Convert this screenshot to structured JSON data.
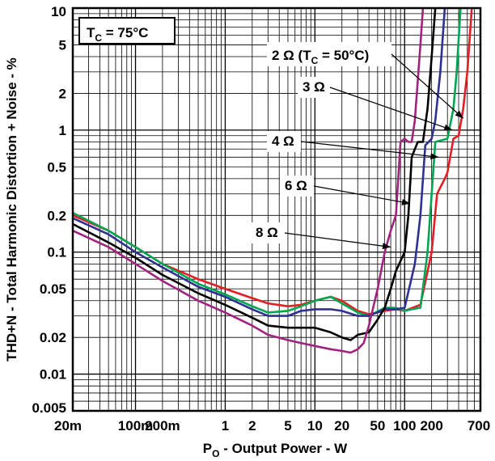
{
  "chart_data": {
    "type": "line",
    "title": "",
    "xlabel_main": "P",
    "xlabel_sub": "O",
    "xlabel_rest": " - Output Power - W",
    "ylabel": "THD+N - Total Harmonic Distortion + Noise - %",
    "xscale": "log",
    "yscale": "log",
    "xlim": [
      0.02,
      700
    ],
    "ylim": [
      0.005,
      10
    ],
    "grid": true,
    "xticks": [
      {
        "v": 0.02,
        "label": "20m"
      },
      {
        "v": 0.1,
        "label": "100m"
      },
      {
        "v": 0.2,
        "label": "200m"
      },
      {
        "v": 1,
        "label": "1"
      },
      {
        "v": 2,
        "label": "2"
      },
      {
        "v": 5,
        "label": "5"
      },
      {
        "v": 10,
        "label": "10"
      },
      {
        "v": 20,
        "label": "20"
      },
      {
        "v": 50,
        "label": "50"
      },
      {
        "v": 100,
        "label": "100"
      },
      {
        "v": 200,
        "label": "200"
      },
      {
        "v": 700,
        "label": "700"
      }
    ],
    "yticks": [
      {
        "v": 10,
        "label": "10"
      },
      {
        "v": 5,
        "label": "5"
      },
      {
        "v": 2,
        "label": "2"
      },
      {
        "v": 1,
        "label": "1"
      },
      {
        "v": 0.5,
        "label": "0.5"
      },
      {
        "v": 0.2,
        "label": "0.2"
      },
      {
        "v": 0.1,
        "label": "0.1"
      },
      {
        "v": 0.05,
        "label": "0.05"
      },
      {
        "v": 0.02,
        "label": "0.02"
      },
      {
        "v": 0.01,
        "label": "0.01"
      },
      {
        "v": 0.005,
        "label": "0.005"
      }
    ],
    "condition_box": {
      "main": "T",
      "sub": "C",
      "rest": " = 75°C"
    },
    "series": [
      {
        "name": "2 Ω (TC = 50°C)",
        "color": "#e31e24",
        "points": [
          [
            0.02,
            0.2
          ],
          [
            0.05,
            0.15
          ],
          [
            0.1,
            0.11
          ],
          [
            0.2,
            0.08
          ],
          [
            0.5,
            0.06
          ],
          [
            1,
            0.05
          ],
          [
            2,
            0.042
          ],
          [
            3,
            0.038
          ],
          [
            5,
            0.036
          ],
          [
            7,
            0.037
          ],
          [
            10,
            0.04
          ],
          [
            15,
            0.043
          ],
          [
            20,
            0.04
          ],
          [
            30,
            0.033
          ],
          [
            40,
            0.031
          ],
          [
            60,
            0.033
          ],
          [
            80,
            0.034
          ],
          [
            100,
            0.033
          ],
          [
            150,
            0.037
          ],
          [
            200,
            0.1
          ],
          [
            230,
            0.3
          ],
          [
            280,
            0.4
          ],
          [
            300,
            0.45
          ],
          [
            350,
            0.85
          ],
          [
            400,
            0.9
          ],
          [
            450,
            1.5
          ],
          [
            500,
            3
          ],
          [
            560,
            10
          ]
        ]
      },
      {
        "name": "3 Ω",
        "color": "#00a651",
        "points": [
          [
            0.02,
            0.21
          ],
          [
            0.05,
            0.15
          ],
          [
            0.1,
            0.11
          ],
          [
            0.2,
            0.08
          ],
          [
            0.5,
            0.055
          ],
          [
            1,
            0.045
          ],
          [
            2,
            0.036
          ],
          [
            3,
            0.032
          ],
          [
            5,
            0.033
          ],
          [
            7,
            0.036
          ],
          [
            10,
            0.04
          ],
          [
            15,
            0.043
          ],
          [
            20,
            0.038
          ],
          [
            30,
            0.032
          ],
          [
            40,
            0.03
          ],
          [
            60,
            0.035
          ],
          [
            80,
            0.035
          ],
          [
            100,
            0.033
          ],
          [
            120,
            0.034
          ],
          [
            150,
            0.035
          ],
          [
            180,
            0.1
          ],
          [
            200,
            0.3
          ],
          [
            220,
            0.8
          ],
          [
            300,
            0.85
          ],
          [
            350,
            1.5
          ],
          [
            380,
            3
          ],
          [
            420,
            10
          ]
        ]
      },
      {
        "name": "4 Ω",
        "color": "#2e3192",
        "points": [
          [
            0.02,
            0.19
          ],
          [
            0.05,
            0.14
          ],
          [
            0.1,
            0.1
          ],
          [
            0.2,
            0.075
          ],
          [
            0.5,
            0.052
          ],
          [
            1,
            0.043
          ],
          [
            2,
            0.034
          ],
          [
            3,
            0.03
          ],
          [
            5,
            0.03
          ],
          [
            7,
            0.033
          ],
          [
            10,
            0.034
          ],
          [
            15,
            0.034
          ],
          [
            20,
            0.033
          ],
          [
            30,
            0.03
          ],
          [
            40,
            0.03
          ],
          [
            60,
            0.034
          ],
          [
            80,
            0.034
          ],
          [
            100,
            0.035
          ],
          [
            130,
            0.08
          ],
          [
            150,
            0.2
          ],
          [
            170,
            0.75
          ],
          [
            200,
            0.85
          ],
          [
            220,
            1.2
          ],
          [
            250,
            3
          ],
          [
            280,
            10
          ]
        ]
      },
      {
        "name": "6 Ω",
        "color": "#000000",
        "points": [
          [
            0.02,
            0.17
          ],
          [
            0.05,
            0.12
          ],
          [
            0.1,
            0.09
          ],
          [
            0.2,
            0.065
          ],
          [
            0.5,
            0.046
          ],
          [
            1,
            0.037
          ],
          [
            2,
            0.029
          ],
          [
            3,
            0.025
          ],
          [
            5,
            0.024
          ],
          [
            7,
            0.024
          ],
          [
            10,
            0.024
          ],
          [
            15,
            0.022
          ],
          [
            20,
            0.02
          ],
          [
            25,
            0.019
          ],
          [
            30,
            0.021
          ],
          [
            40,
            0.022
          ],
          [
            50,
            0.028
          ],
          [
            60,
            0.035
          ],
          [
            70,
            0.05
          ],
          [
            80,
            0.07
          ],
          [
            100,
            0.1
          ],
          [
            110,
            0.2
          ],
          [
            120,
            0.6
          ],
          [
            140,
            0.8
          ],
          [
            160,
            0.8
          ],
          [
            180,
            1.5
          ],
          [
            200,
            4
          ],
          [
            220,
            10
          ]
        ]
      },
      {
        "name": "8 Ω",
        "color": "#a1237f",
        "points": [
          [
            0.02,
            0.15
          ],
          [
            0.05,
            0.11
          ],
          [
            0.1,
            0.08
          ],
          [
            0.2,
            0.058
          ],
          [
            0.5,
            0.04
          ],
          [
            1,
            0.032
          ],
          [
            2,
            0.025
          ],
          [
            3,
            0.021
          ],
          [
            5,
            0.019
          ],
          [
            7,
            0.018
          ],
          [
            10,
            0.017
          ],
          [
            15,
            0.016
          ],
          [
            20,
            0.0155
          ],
          [
            25,
            0.015
          ],
          [
            30,
            0.016
          ],
          [
            35,
            0.018
          ],
          [
            40,
            0.025
          ],
          [
            50,
            0.05
          ],
          [
            60,
            0.1
          ],
          [
            70,
            0.15
          ],
          [
            80,
            0.2
          ],
          [
            90,
            0.8
          ],
          [
            100,
            0.85
          ],
          [
            110,
            0.8
          ],
          [
            120,
            0.8
          ],
          [
            130,
            1.2
          ],
          [
            150,
            5
          ],
          [
            160,
            10
          ]
        ]
      }
    ],
    "annotations": [
      {
        "main": "2 Ω (T",
        "sub": "C",
        "rest": " = 50°C)",
        "series": 0,
        "target": [
          450,
          1.25
        ]
      },
      {
        "main": "3 Ω",
        "sub": "",
        "rest": "",
        "series": 1,
        "target": [
          340,
          1.0
        ]
      },
      {
        "main": "4 Ω",
        "sub": "",
        "rest": "",
        "series": 2,
        "target": [
          240,
          0.6
        ]
      },
      {
        "main": "6 Ω",
        "sub": "",
        "rest": "",
        "series": 3,
        "target": [
          115,
          0.25
        ]
      },
      {
        "main": "8 Ω",
        "sub": "",
        "rest": "",
        "series": 4,
        "target": [
          70,
          0.11
        ]
      }
    ]
  }
}
